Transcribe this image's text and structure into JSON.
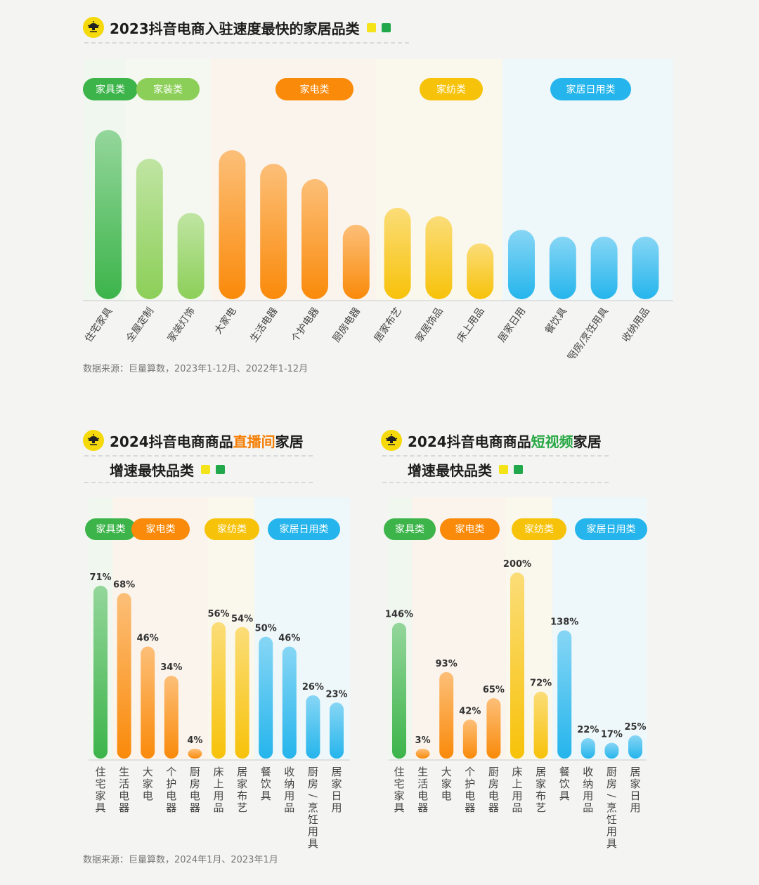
{
  "colors": {
    "furniture": "#3cb44a",
    "decoration": "#8ccf58",
    "appliance": "#fa8a0a",
    "textile": "#f7c20a",
    "daily": "#25b5ec",
    "yellow_square": "#f5e31a",
    "green_square": "#21a84a"
  },
  "header": {
    "icon": "lamp-logo-icon"
  },
  "section1": {
    "title": "2023抖音电商入驻速度最快的家居品类",
    "source": "数据来源：巨量算数，2023年1-12月、2022年1-12月"
  },
  "section2": {
    "title_prefix": "2024抖音电商商品",
    "title_highlight": "直播间",
    "title_suffix": "家居",
    "subtitle": "增速最快品类",
    "source": "数据来源：巨量算数，2024年1月、2023年1月"
  },
  "section3": {
    "title_prefix": "2024抖音电商商品",
    "title_highlight": "短视频",
    "title_suffix": "家居",
    "subtitle": "增速最快品类"
  },
  "chart_data": [
    {
      "type": "bar",
      "title": "2023抖音电商入驻速度最快的家居品类",
      "groups": [
        {
          "name": "家具类",
          "color": "#3cb44a"
        },
        {
          "name": "家装类",
          "color": "#8ccf58"
        },
        {
          "name": "家电类",
          "color": "#fa8a0a"
        },
        {
          "name": "家纺类",
          "color": "#f7c20a"
        },
        {
          "name": "家居日用类",
          "color": "#25b5ec"
        }
      ],
      "categories": [
        "住宅家具",
        "全屋定制",
        "家装灯饰",
        "大家电",
        "生活电器",
        "个护电器",
        "厨房电器",
        "居家布艺",
        "家居饰品",
        "床上用品",
        "居家日用",
        "餐饮具",
        "厨房/烹饪用具",
        "收纳用品"
      ],
      "category_group": [
        0,
        1,
        1,
        2,
        2,
        2,
        2,
        3,
        3,
        3,
        4,
        4,
        4,
        4
      ],
      "values": [
        100,
        83,
        51,
        88,
        80,
        71,
        44,
        54,
        49,
        33,
        41,
        37,
        37,
        37
      ],
      "value_note": "relative bar heights, no axis printed",
      "ylim": [
        0,
        100
      ],
      "grid": false
    },
    {
      "type": "bar",
      "title": "2024抖音电商商品直播间家居增速最快品类",
      "groups": [
        {
          "name": "家具类",
          "color": "#3cb44a"
        },
        {
          "name": "家电类",
          "color": "#fa8a0a"
        },
        {
          "name": "家纺类",
          "color": "#f7c20a"
        },
        {
          "name": "家居日用类",
          "color": "#25b5ec"
        }
      ],
      "categories": [
        "住宅家具",
        "生活电器",
        "大家电",
        "个护电器",
        "厨房电器",
        "床上用品",
        "居家布艺",
        "餐饮具",
        "收纳用品",
        "厨房/烹饪用具",
        "居家日用"
      ],
      "category_group": [
        0,
        1,
        1,
        1,
        1,
        2,
        2,
        3,
        3,
        3,
        3
      ],
      "values": [
        71,
        68,
        46,
        34,
        4,
        56,
        54,
        50,
        46,
        26,
        23
      ],
      "labels": [
        "71%",
        "68%",
        "46%",
        "34%",
        "4%",
        "56%",
        "54%",
        "50%",
        "46%",
        "26%",
        "23%"
      ],
      "ylim": [
        0,
        75
      ],
      "grid": false
    },
    {
      "type": "bar",
      "title": "2024抖音电商商品短视频家居增速最快品类",
      "groups": [
        {
          "name": "家具类",
          "color": "#3cb44a"
        },
        {
          "name": "家电类",
          "color": "#fa8a0a"
        },
        {
          "name": "家纺类",
          "color": "#f7c20a"
        },
        {
          "name": "家居日用类",
          "color": "#25b5ec"
        }
      ],
      "categories": [
        "住宅家具",
        "生活电器",
        "大家电",
        "个护电器",
        "厨房电器",
        "床上用品",
        "居家布艺",
        "餐饮具",
        "收纳用品",
        "厨房/烹饪用具",
        "居家日用"
      ],
      "category_group": [
        0,
        1,
        1,
        1,
        1,
        2,
        2,
        3,
        3,
        3,
        3
      ],
      "values": [
        146,
        3,
        93,
        42,
        65,
        200,
        72,
        138,
        22,
        17,
        25
      ],
      "labels": [
        "146%",
        "3%",
        "93%",
        "42%",
        "65%",
        "200%",
        "72%",
        "138%",
        "22%",
        "17%",
        "25%"
      ],
      "ylim": [
        0,
        210
      ],
      "grid": false
    }
  ]
}
